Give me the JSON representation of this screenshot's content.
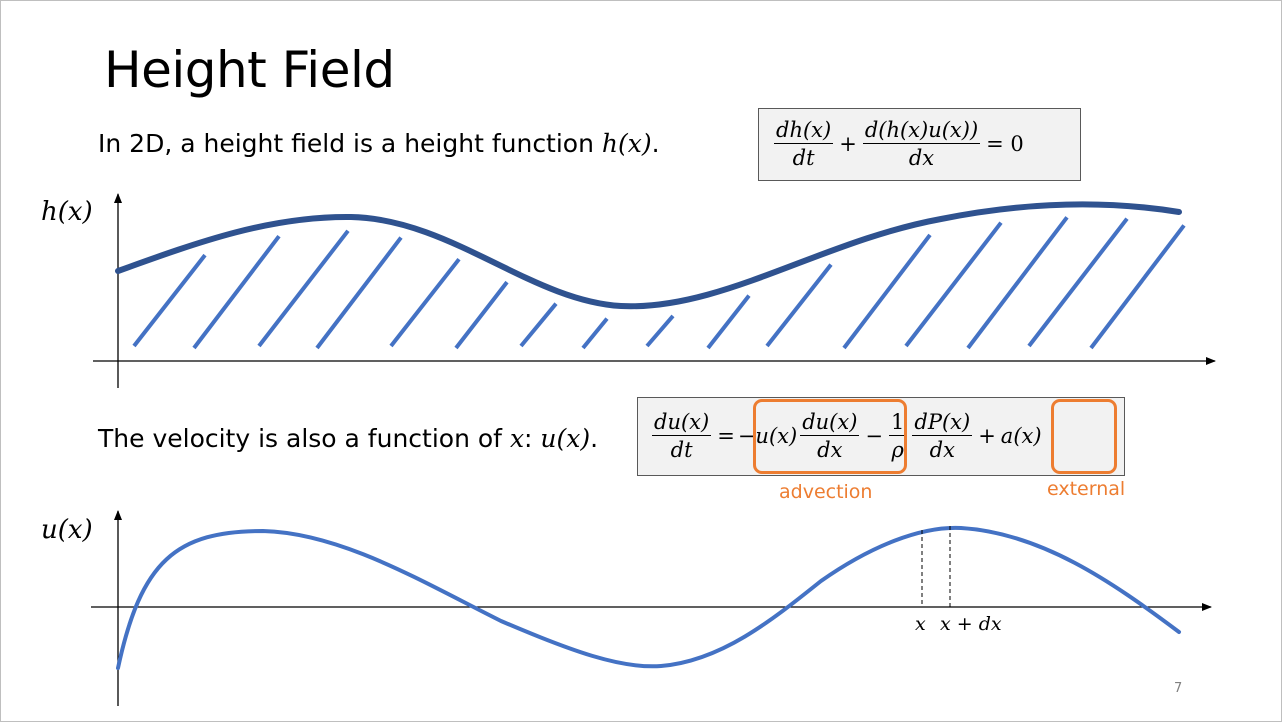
{
  "title": "Height Field",
  "height_text": {
    "before": "In 2D, a height field is a height function ",
    "math": "h(x)",
    "after": "."
  },
  "height_eq": {
    "term1_num": "dh(x)",
    "term1_den": "dt",
    "plus": "+",
    "term2_num": "d(h(x)u(x))",
    "term2_den": "dx",
    "equals_zero": "= 0"
  },
  "height_axis_label": "h(x)",
  "velocity_text": {
    "before": "The velocity is also a function of ",
    "math1": "x",
    "colon": ": ",
    "math2": "u(x)",
    "after": "."
  },
  "velocity_eq": {
    "lhs_num": "du(x)",
    "lhs_den": "dt",
    "equals": "=",
    "minus1": "−",
    "advect_factor": "u(x)",
    "advect_num": "du(x)",
    "advect_den": "dx",
    "minus2": "−",
    "press_num": "1",
    "press_den": "ρ",
    "grad_num": "dP(x)",
    "grad_den": "dx",
    "plus": "+",
    "external_term": "a(x)"
  },
  "annotations": {
    "advection": "advection",
    "external": "external"
  },
  "velocity_axis_label": "u(x)",
  "tick_x": "x",
  "tick_x_dx": "x + dx",
  "page_number": "7",
  "colors": {
    "height_curve": "#2f528f",
    "hatch": "#4472c4",
    "velocity_curve": "#4472c4",
    "highlight": "#ed7d31",
    "equation_box_bg": "#f2f2f2"
  }
}
